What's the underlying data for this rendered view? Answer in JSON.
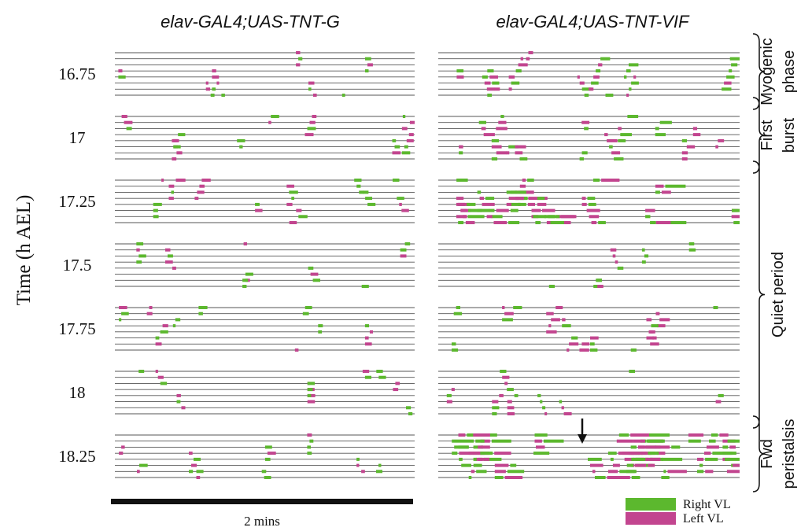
{
  "chart_data": {
    "type": "raster",
    "y_axis_label": "Time (h AEL)",
    "scale_bar_label": "2 mins",
    "panels": [
      {
        "title": "elav-GAL4;UAS-TNT-G"
      },
      {
        "title": "elav-GAL4;UAS-TNT-VIF"
      }
    ],
    "timepoints": [
      "16.75",
      "17",
      "17.25",
      "17.5",
      "17.75",
      "18",
      "18.25"
    ],
    "phases": [
      {
        "label_lines": [
          "Myogenic",
          "phase"
        ],
        "rows": [
          0
        ]
      },
      {
        "label_lines": [
          "First",
          "burst"
        ],
        "rows": [
          1
        ]
      },
      {
        "label_lines": [
          "Quiet period"
        ],
        "rows": [
          2,
          3,
          4,
          5
        ]
      },
      {
        "label_lines": [
          "Fwd",
          "peristalsis"
        ],
        "rows": [
          6
        ]
      }
    ],
    "legend": [
      {
        "label": "Right VL",
        "color": "#5cb82e"
      },
      {
        "label": "Left VL",
        "color": "#c2458f"
      }
    ],
    "segment_lines_per_block": 8,
    "activity_level": [
      [
        0.18,
        0.4
      ],
      [
        0.3,
        0.6
      ],
      [
        0.4,
        0.75
      ],
      [
        0.22,
        0.12
      ],
      [
        0.3,
        0.5
      ],
      [
        0.25,
        0.22
      ],
      [
        0.3,
        1.0
      ]
    ],
    "arrow_marker": {
      "panel": 1,
      "timepoint": "18.25"
    }
  }
}
